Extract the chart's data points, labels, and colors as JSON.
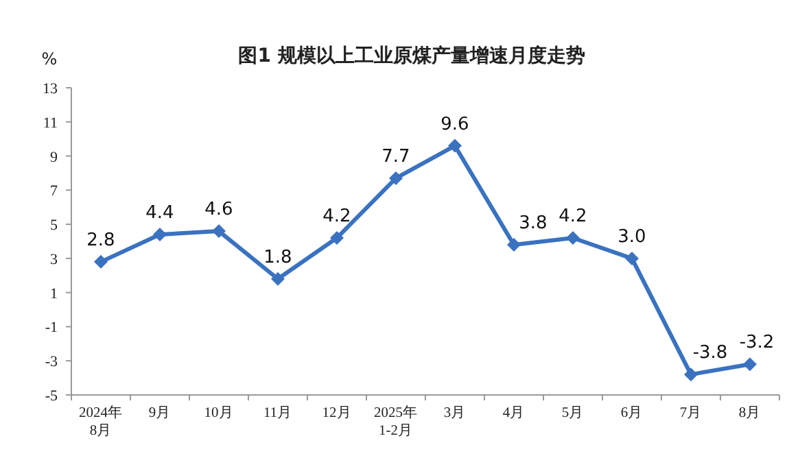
{
  "chart_data": {
    "type": "line",
    "title": "图1  规模以上工业原煤产量增速月度走势",
    "ylabel": "%",
    "categories": [
      "2024年\n8月",
      "9月",
      "10月",
      "11月",
      "12月",
      "2025年\n1-2月",
      "3月",
      "4月",
      "5月",
      "6月",
      "7月",
      "8月"
    ],
    "series": [
      {
        "color": "#3a72c0",
        "values": [
          2.8,
          4.4,
          4.6,
          1.8,
          4.2,
          7.7,
          9.6,
          3.8,
          4.2,
          3.0,
          -3.8,
          -3.2
        ]
      }
    ],
    "value_labels": [
      "2.8",
      "4.4",
      "4.6",
      "1.8",
      "4.2",
      "7.7",
      "9.6",
      "3.8",
      "4.2",
      "3.0",
      "-3.8",
      "-3.2"
    ],
    "ylim": [
      -5,
      13
    ],
    "yticks": [
      -5,
      -3,
      -1,
      1,
      3,
      5,
      7,
      9,
      11,
      13
    ],
    "grid": false,
    "marker": "diamond",
    "line_style": "solid"
  }
}
